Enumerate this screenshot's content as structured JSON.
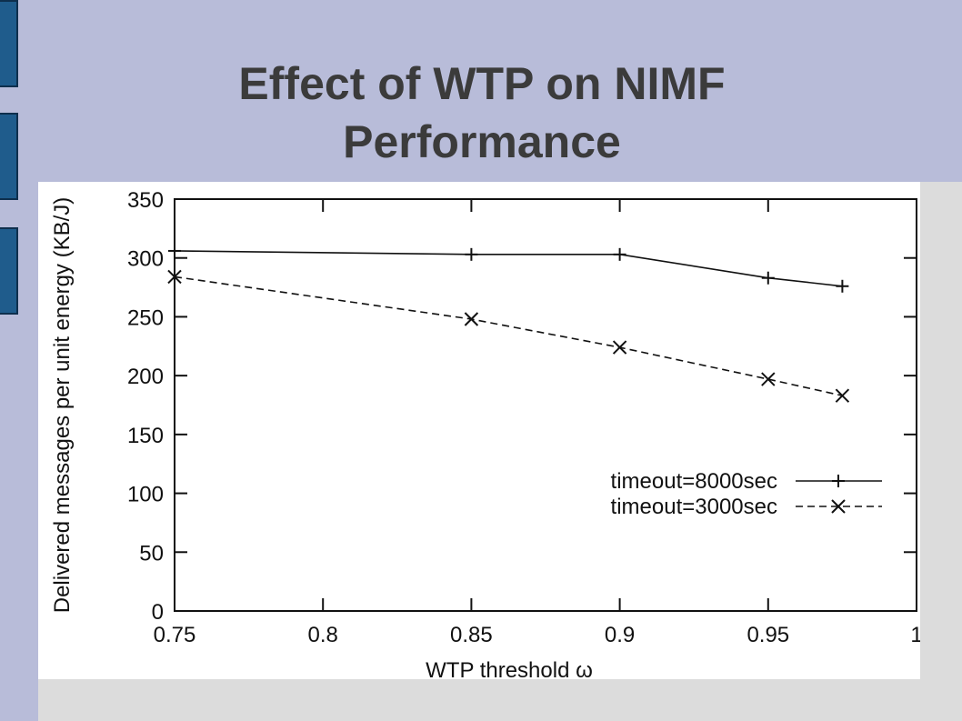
{
  "slide": {
    "title_line1": "Effect of WTP on NIMF",
    "title_line2": "Performance"
  },
  "colors": {
    "background": "#b8bcd9",
    "tab": "#1f5c8c",
    "series": "#111111"
  },
  "chart_data": {
    "type": "line",
    "title": "",
    "xlabel": "WTP threshold ω",
    "ylabel": "Delivered messages per unit energy (KB/J)",
    "xlim": [
      0.75,
      1.0
    ],
    "ylim": [
      0,
      350
    ],
    "xticks": [
      0.75,
      0.8,
      0.85,
      0.9,
      0.95,
      1.0
    ],
    "xtick_labels": [
      "0.75",
      "0.8",
      "0.85",
      "0.9",
      "0.95",
      "1"
    ],
    "yticks": [
      0,
      50,
      100,
      150,
      200,
      250,
      300,
      350
    ],
    "ytick_labels": [
      "0",
      "50",
      "100",
      "150",
      "200",
      "250",
      "300",
      "350"
    ],
    "legend_position": "center-right",
    "grid": false,
    "series": [
      {
        "name": "timeout=8000sec",
        "marker": "+",
        "linestyle": "solid",
        "x": [
          0.75,
          0.85,
          0.9,
          0.95,
          0.975
        ],
        "y": [
          306,
          303,
          303,
          283,
          276
        ]
      },
      {
        "name": "timeout=3000sec",
        "marker": "x",
        "linestyle": "dashed",
        "x": [
          0.75,
          0.85,
          0.9,
          0.95,
          0.975
        ],
        "y": [
          284,
          248,
          224,
          197,
          183
        ]
      }
    ]
  }
}
